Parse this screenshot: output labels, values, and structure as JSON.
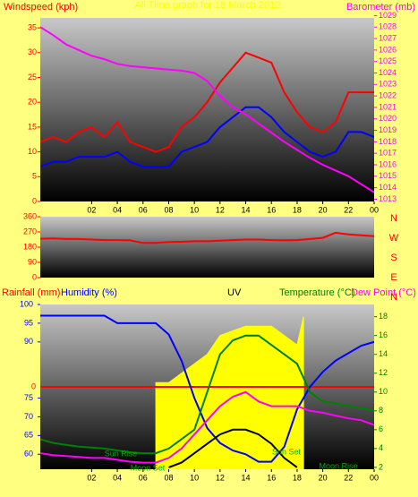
{
  "chart_data": [
    {
      "type": "line",
      "title": "All Time graph for 18 March 2012",
      "y_label": "Windspeed (kph)",
      "y2_label": "Barometer (mb)",
      "x": [
        -2,
        -1,
        0,
        1,
        2,
        3,
        4,
        5,
        6,
        7,
        8,
        9,
        10,
        11,
        12,
        13,
        14,
        15,
        16,
        17,
        18,
        19,
        20,
        21,
        22,
        23,
        24
      ],
      "series": [
        {
          "color": "#ff0000",
          "values": [
            12,
            13,
            12,
            14,
            15,
            13,
            16,
            12,
            11,
            10,
            11,
            15,
            17,
            20,
            24,
            27,
            30,
            29,
            28,
            22,
            18,
            15,
            14,
            16,
            22,
            22,
            22
          ]
        },
        {
          "color": "#0000ff",
          "values": [
            7,
            8,
            8,
            9,
            9,
            9,
            10,
            8,
            7,
            7,
            7,
            10,
            11,
            12,
            15,
            17,
            19,
            19,
            17,
            14,
            12,
            10,
            9,
            10,
            14,
            14,
            13
          ]
        },
        {
          "color": "#ff00ff",
          "axis": "y2",
          "values": [
            1028,
            1027.3,
            1026.5,
            1026,
            1025.5,
            1025.2,
            1024.8,
            1024.6,
            1024.5,
            1024.4,
            1024.3,
            1024.2,
            1024,
            1023.3,
            1022,
            1021,
            1020.4,
            1019.6,
            1018.8,
            1018,
            1017.3,
            1016.6,
            1016,
            1015.5,
            1015,
            1014.3,
            1013.6
          ]
        }
      ],
      "xlim": [
        -2,
        24
      ],
      "xticks": [
        {
          "value": 2,
          "label": "02"
        },
        {
          "value": 4,
          "label": "04"
        },
        {
          "value": 6,
          "label": "06"
        },
        {
          "value": 8,
          "label": "08"
        },
        10,
        12,
        14,
        16,
        18,
        20,
        22,
        {
          "value": 24,
          "label": "00"
        }
      ],
      "ylim": [
        0,
        37
      ],
      "yticks": [
        0,
        5,
        10,
        15,
        20,
        25,
        30,
        35
      ],
      "y2lim": [
        1012.8,
        1028.8
      ],
      "y2ticks": [
        1013,
        1014,
        1015,
        1016,
        1017,
        1018,
        1019,
        1020,
        1021,
        1022,
        1023,
        1024,
        1025,
        1026,
        1027,
        1028,
        1029
      ]
    },
    {
      "type": "line",
      "x": [
        -2,
        -1,
        0,
        1,
        2,
        3,
        4,
        5,
        6,
        7,
        8,
        9,
        10,
        11,
        12,
        13,
        14,
        15,
        16,
        17,
        18,
        19,
        20,
        21,
        22,
        23,
        24
      ],
      "series": [
        {
          "color": "#ff0000",
          "values": [
            230,
            232,
            228,
            228,
            225,
            222,
            222,
            220,
            205,
            205,
            210,
            212,
            215,
            215,
            218,
            222,
            225,
            225,
            222,
            220,
            222,
            228,
            235,
            265,
            255,
            250,
            245
          ]
        }
      ],
      "xlim": [
        -2,
        24
      ],
      "ylim": [
        0,
        360
      ],
      "yticks": [
        0,
        90,
        180,
        270,
        360
      ],
      "direction_labels": [
        "N",
        "W",
        "S",
        "E",
        "N"
      ]
    },
    {
      "type": "line",
      "rain_label": "Rainfall (mm)",
      "y_label": "Humidity (%)",
      "uv_label": "UV",
      "y2_label": "Temperature (°C)",
      "y3_label": "Dew Point (°C)",
      "annotations": [
        "Sun Rise",
        "Sun Set",
        "Moon Set",
        "Moon Rise"
      ],
      "x": [
        -2,
        -1,
        0,
        1,
        2,
        3,
        4,
        5,
        6,
        7,
        8,
        9,
        10,
        11,
        12,
        13,
        14,
        15,
        16,
        17,
        18,
        19,
        20,
        21,
        22,
        23,
        24
      ],
      "series": [
        {
          "color": "#ffff00",
          "axis": "y2",
          "area": true,
          "x": [
            7,
            8,
            9,
            10,
            11,
            12,
            13,
            14,
            15,
            16,
            17,
            18,
            18.5
          ],
          "values": [
            11,
            11,
            12,
            13,
            14,
            16,
            16.5,
            17,
            17,
            17,
            16,
            15,
            18
          ]
        },
        {
          "color": "#ff0000",
          "axis": "rain",
          "values": [
            0,
            0,
            0,
            0,
            0,
            0,
            0,
            0,
            0,
            0,
            0,
            0,
            0,
            0,
            0,
            0,
            0,
            0,
            0,
            0,
            0,
            0,
            0,
            0,
            0,
            0,
            0
          ]
        },
        {
          "color": "#0000ff",
          "values": [
            97,
            97,
            97,
            97,
            97,
            97,
            95,
            95,
            95,
            95,
            92,
            85,
            75,
            67,
            63,
            61,
            60,
            58,
            58,
            62,
            72,
            78,
            82,
            85,
            87,
            89,
            90
          ]
        },
        {
          "color": "#008000",
          "axis": "y2",
          "values": [
            5,
            4.6,
            4.4,
            4.2,
            4.1,
            4,
            3.8,
            3.6,
            3.5,
            3.5,
            4,
            5,
            6,
            10,
            14,
            15.5,
            16,
            16,
            15,
            14,
            13,
            10,
            9,
            8.8,
            8.5,
            8.3,
            8
          ]
        },
        {
          "color": "#ff00ff",
          "axis": "y2",
          "values": [
            3.5,
            3.3,
            3.2,
            3.1,
            3,
            3,
            2.8,
            2.6,
            2.5,
            2.5,
            3,
            4,
            5.5,
            7,
            8.5,
            9.5,
            10,
            9,
            8.5,
            8.5,
            8.5,
            8,
            7.8,
            7.5,
            7.2,
            7,
            6.5
          ]
        },
        {
          "color": "#000000",
          "axis": "y2",
          "values": [
            null,
            null,
            null,
            null,
            null,
            null,
            null,
            null,
            null,
            null,
            2,
            2.5,
            3.5,
            4.5,
            5.5,
            6,
            6,
            5.5,
            4.5,
            3,
            2,
            null,
            null,
            null,
            null,
            null,
            null
          ]
        }
      ],
      "xlim": [
        -2,
        24
      ],
      "xticks": [
        {
          "value": 2,
          "label": "02"
        },
        {
          "value": 4,
          "label": "04"
        },
        {
          "value": 6,
          "label": "06"
        },
        {
          "value": 8,
          "label": "08"
        },
        10,
        12,
        14,
        16,
        18,
        20,
        22,
        {
          "value": 24,
          "label": "00"
        }
      ],
      "rain_lim": [
        -1,
        1
      ],
      "rain_ticks": [
        0
      ],
      "ylim": [
        56,
        100
      ],
      "yticks": [
        60,
        65,
        70,
        75,
        90,
        95,
        100
      ],
      "y2lim": [
        1.8,
        19.3
      ],
      "y2ticks": [
        2,
        4,
        6,
        8,
        10,
        12,
        14,
        16,
        18
      ]
    }
  ]
}
